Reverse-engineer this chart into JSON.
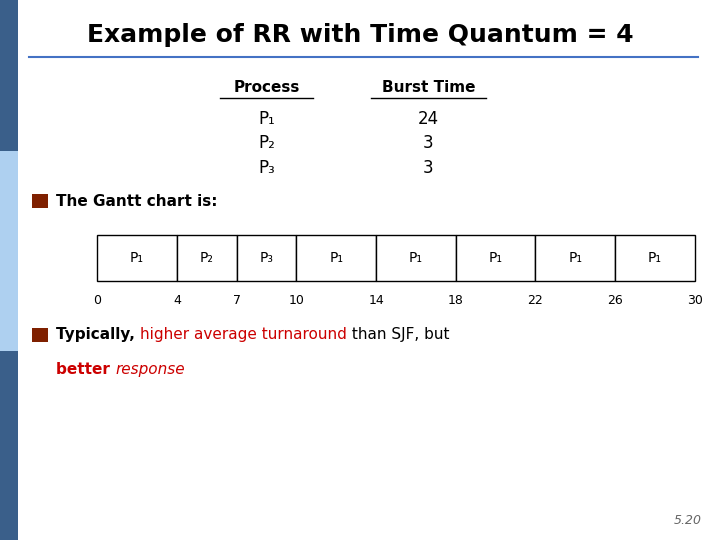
{
  "title": "Example of RR with Time Quantum = 4",
  "bg_color": "#ffffff",
  "title_color": "#000000",
  "title_fontsize": 18,
  "sidebar_dark_color": "#3a5f8a",
  "sidebar_light_color": "#aed0f0",
  "table_header": [
    "Process",
    "Burst Time"
  ],
  "processes": [
    "P₁",
    "P₂",
    "P₃"
  ],
  "burst_times": [
    "24",
    "3",
    "3"
  ],
  "gantt_labels": [
    "P₁",
    "P₂",
    "P₃",
    "P₁",
    "P₁",
    "P₁",
    "P₁",
    "P₁"
  ],
  "gantt_ticks": [
    0,
    4,
    7,
    10,
    14,
    18,
    22,
    26,
    30
  ],
  "gantt_widths": [
    4,
    3,
    3,
    4,
    4,
    4,
    4,
    4
  ],
  "bullet_color": "#7f2000",
  "gantt_chart_is": "The Gantt chart is:",
  "bottom_line1": [
    {
      "text": "Typically, ",
      "color": "#000000",
      "bold": true,
      "italic": false
    },
    {
      "text": "higher average turnaround",
      "color": "#cc0000",
      "bold": false,
      "italic": false
    },
    {
      "text": " than SJF, but",
      "color": "#000000",
      "bold": false,
      "italic": false
    }
  ],
  "bottom_line2": [
    {
      "text": "better ",
      "color": "#cc0000",
      "bold": true,
      "italic": false
    },
    {
      "text": "response",
      "color": "#cc0000",
      "bold": false,
      "italic": true
    }
  ],
  "page_number": "5.20",
  "page_number_color": "#666666",
  "gantt_box_color": "#ffffff",
  "gantt_box_edge": "#000000",
  "underline_color": "#4472c4"
}
